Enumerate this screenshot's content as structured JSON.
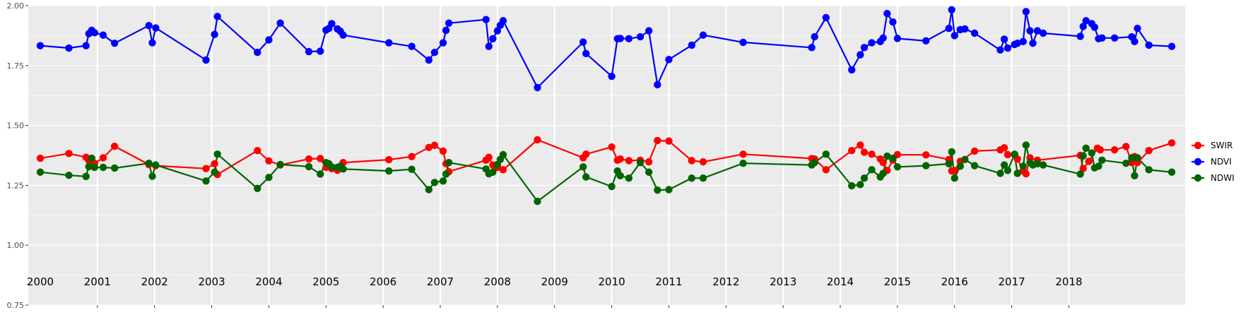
{
  "chart_data": {
    "type": "line",
    "title": "",
    "xlabel": "",
    "ylabel": "",
    "ylim": [
      0.75,
      2.0
    ],
    "xlim": [
      1999.55,
      2018.9
    ],
    "y_ticks": [
      0.75,
      1.0,
      1.25,
      1.5,
      1.75,
      2.0
    ],
    "y_tick_labels": [
      "0.75",
      "1.00",
      "1.25",
      "1.50",
      "1.75",
      "2.00"
    ],
    "year_labels": [
      "2000",
      "2001",
      "2002",
      "2003",
      "2004",
      "2005",
      "2006",
      "2007",
      "2008",
      "2009",
      "2010",
      "2011",
      "2012",
      "2013",
      "2014",
      "2015",
      "2016",
      "2017",
      "2018"
    ],
    "year_label_y": 0.85,
    "grid": true,
    "background": "#EBEBEB",
    "legend": {
      "position": "right",
      "entries": [
        "SWIR",
        "NDVI",
        "NDWI"
      ]
    },
    "series": [
      {
        "name": "NDVI",
        "color": "#0000FF",
        "points": [
          [
            2000.0,
            1.833
          ],
          [
            2000.5,
            1.823
          ],
          [
            2000.8,
            1.833
          ],
          [
            2000.85,
            1.883
          ],
          [
            2000.9,
            1.897
          ],
          [
            2000.95,
            1.887
          ],
          [
            2001.1,
            1.877
          ],
          [
            2001.3,
            1.843
          ],
          [
            2001.9,
            1.917
          ],
          [
            2001.96,
            1.845
          ],
          [
            2002.02,
            1.907
          ],
          [
            2002.9,
            1.773
          ],
          [
            2003.05,
            1.88
          ],
          [
            2003.1,
            1.955
          ],
          [
            2003.8,
            1.805
          ],
          [
            2004.0,
            1.857
          ],
          [
            2004.2,
            1.927
          ],
          [
            2004.7,
            1.808
          ],
          [
            2004.9,
            1.81
          ],
          [
            2005.0,
            1.898
          ],
          [
            2005.05,
            1.905
          ],
          [
            2005.1,
            1.925
          ],
          [
            2005.2,
            1.903
          ],
          [
            2005.25,
            1.893
          ],
          [
            2005.3,
            1.877
          ],
          [
            2006.1,
            1.845
          ],
          [
            2006.5,
            1.83
          ],
          [
            2006.8,
            1.773
          ],
          [
            2006.9,
            1.805
          ],
          [
            2007.05,
            1.845
          ],
          [
            2007.1,
            1.897
          ],
          [
            2007.15,
            1.927
          ],
          [
            2007.8,
            1.942
          ],
          [
            2007.85,
            1.83
          ],
          [
            2007.92,
            1.862
          ],
          [
            2008.0,
            1.895
          ],
          [
            2008.05,
            1.918
          ],
          [
            2008.1,
            1.937
          ],
          [
            2008.7,
            1.658
          ],
          [
            2009.5,
            1.848
          ],
          [
            2009.55,
            1.8
          ],
          [
            2010.0,
            1.705
          ],
          [
            2010.1,
            1.862
          ],
          [
            2010.15,
            1.863
          ],
          [
            2010.3,
            1.862
          ],
          [
            2010.5,
            1.87
          ],
          [
            2010.65,
            1.895
          ],
          [
            2010.8,
            1.67
          ],
          [
            2011.0,
            1.775
          ],
          [
            2011.4,
            1.835
          ],
          [
            2011.6,
            1.877
          ],
          [
            2012.3,
            1.847
          ],
          [
            2013.5,
            1.825
          ],
          [
            2013.55,
            1.87
          ],
          [
            2013.75,
            1.95
          ],
          [
            2014.2,
            1.732
          ],
          [
            2014.35,
            1.795
          ],
          [
            2014.42,
            1.825
          ],
          [
            2014.55,
            1.845
          ],
          [
            2014.7,
            1.85
          ],
          [
            2014.75,
            1.865
          ],
          [
            2014.82,
            1.967
          ],
          [
            2014.92,
            1.932
          ],
          [
            2015.0,
            1.863
          ],
          [
            2015.5,
            1.853
          ],
          [
            2015.9,
            1.905
          ],
          [
            2015.95,
            1.983
          ],
          [
            2016.0,
            1.875
          ],
          [
            2016.1,
            1.9
          ],
          [
            2016.18,
            1.903
          ],
          [
            2016.35,
            1.885
          ],
          [
            2016.8,
            1.815
          ],
          [
            2016.87,
            1.86
          ],
          [
            2016.93,
            1.823
          ],
          [
            2017.05,
            1.838
          ],
          [
            2017.1,
            1.843
          ],
          [
            2017.2,
            1.85
          ],
          [
            2017.25,
            1.975
          ],
          [
            2017.32,
            1.895
          ],
          [
            2017.37,
            1.843
          ],
          [
            2017.45,
            1.895
          ],
          [
            2017.55,
            1.885
          ],
          [
            2018.2,
            1.872
          ],
          [
            2018.25,
            1.913
          ],
          [
            2018.3,
            1.937
          ],
          [
            2018.4,
            1.925
          ],
          [
            2018.45,
            1.91
          ],
          [
            2018.52,
            1.862
          ],
          [
            2018.58,
            1.865
          ],
          [
            2018.8,
            1.865
          ],
          [
            2019.1,
            1.87
          ],
          [
            2019.15,
            1.85
          ],
          [
            2019.2,
            1.905
          ],
          [
            2019.4,
            1.835
          ],
          [
            2019.8,
            1.83
          ]
        ]
      },
      {
        "name": "SWIR",
        "color": "#FF0000",
        "points": [
          [
            2000.0,
            1.363
          ],
          [
            2000.5,
            1.383
          ],
          [
            2000.8,
            1.367
          ],
          [
            2000.85,
            1.353
          ],
          [
            2000.95,
            1.342
          ],
          [
            2001.1,
            1.365
          ],
          [
            2001.3,
            1.413
          ],
          [
            2001.9,
            1.337
          ],
          [
            2002.02,
            1.332
          ],
          [
            2002.9,
            1.32
          ],
          [
            2003.05,
            1.34
          ],
          [
            2003.1,
            1.295
          ],
          [
            2003.8,
            1.395
          ],
          [
            2004.0,
            1.352
          ],
          [
            2004.2,
            1.335
          ],
          [
            2004.7,
            1.36
          ],
          [
            2004.9,
            1.362
          ],
          [
            2005.0,
            1.325
          ],
          [
            2005.1,
            1.32
          ],
          [
            2005.2,
            1.313
          ],
          [
            2005.3,
            1.345
          ],
          [
            2006.1,
            1.357
          ],
          [
            2006.5,
            1.37
          ],
          [
            2006.8,
            1.408
          ],
          [
            2006.9,
            1.417
          ],
          [
            2007.05,
            1.393
          ],
          [
            2007.1,
            1.34
          ],
          [
            2007.15,
            1.307
          ],
          [
            2007.8,
            1.355
          ],
          [
            2007.85,
            1.367
          ],
          [
            2007.92,
            1.335
          ],
          [
            2008.0,
            1.325
          ],
          [
            2008.1,
            1.315
          ],
          [
            2008.7,
            1.44
          ],
          [
            2009.5,
            1.365
          ],
          [
            2009.55,
            1.38
          ],
          [
            2010.0,
            1.41
          ],
          [
            2010.1,
            1.355
          ],
          [
            2010.15,
            1.36
          ],
          [
            2010.3,
            1.353
          ],
          [
            2010.5,
            1.355
          ],
          [
            2010.65,
            1.348
          ],
          [
            2010.8,
            1.437
          ],
          [
            2011.0,
            1.435
          ],
          [
            2011.4,
            1.353
          ],
          [
            2011.6,
            1.348
          ],
          [
            2012.3,
            1.38
          ],
          [
            2013.5,
            1.362
          ],
          [
            2013.55,
            1.36
          ],
          [
            2013.75,
            1.315
          ],
          [
            2014.2,
            1.395
          ],
          [
            2014.35,
            1.418
          ],
          [
            2014.42,
            1.388
          ],
          [
            2014.55,
            1.38
          ],
          [
            2014.7,
            1.36
          ],
          [
            2014.75,
            1.345
          ],
          [
            2014.82,
            1.312
          ],
          [
            2014.92,
            1.355
          ],
          [
            2015.0,
            1.378
          ],
          [
            2015.5,
            1.377
          ],
          [
            2015.9,
            1.358
          ],
          [
            2015.95,
            1.31
          ],
          [
            2016.0,
            1.312
          ],
          [
            2016.1,
            1.35
          ],
          [
            2016.35,
            1.393
          ],
          [
            2016.8,
            1.398
          ],
          [
            2016.87,
            1.407
          ],
          [
            2016.93,
            1.378
          ],
          [
            2017.05,
            1.378
          ],
          [
            2017.1,
            1.36
          ],
          [
            2017.2,
            1.31
          ],
          [
            2017.25,
            1.298
          ],
          [
            2017.32,
            1.365
          ],
          [
            2017.45,
            1.355
          ],
          [
            2018.2,
            1.375
          ],
          [
            2018.25,
            1.32
          ],
          [
            2018.35,
            1.35
          ],
          [
            2018.5,
            1.405
          ],
          [
            2018.55,
            1.398
          ],
          [
            2018.8,
            1.398
          ],
          [
            2019.0,
            1.412
          ],
          [
            2019.1,
            1.345
          ],
          [
            2019.15,
            1.37
          ],
          [
            2019.2,
            1.345
          ],
          [
            2019.4,
            1.395
          ],
          [
            2019.8,
            1.427
          ]
        ]
      },
      {
        "name": "NDWI",
        "color": "#006400",
        "points": [
          [
            2000.0,
            1.305
          ],
          [
            2000.5,
            1.292
          ],
          [
            2000.8,
            1.287
          ],
          [
            2000.85,
            1.328
          ],
          [
            2000.9,
            1.363
          ],
          [
            2000.95,
            1.325
          ],
          [
            2001.1,
            1.325
          ],
          [
            2001.3,
            1.322
          ],
          [
            2001.9,
            1.342
          ],
          [
            2001.96,
            1.288
          ],
          [
            2002.02,
            1.335
          ],
          [
            2002.9,
            1.268
          ],
          [
            2003.05,
            1.305
          ],
          [
            2003.1,
            1.38
          ],
          [
            2003.8,
            1.237
          ],
          [
            2004.0,
            1.283
          ],
          [
            2004.2,
            1.337
          ],
          [
            2004.7,
            1.328
          ],
          [
            2004.9,
            1.297
          ],
          [
            2005.0,
            1.345
          ],
          [
            2005.05,
            1.34
          ],
          [
            2005.1,
            1.327
          ],
          [
            2005.2,
            1.325
          ],
          [
            2005.25,
            1.33
          ],
          [
            2005.3,
            1.318
          ],
          [
            2006.1,
            1.31
          ],
          [
            2006.5,
            1.317
          ],
          [
            2006.8,
            1.232
          ],
          [
            2006.9,
            1.262
          ],
          [
            2007.05,
            1.268
          ],
          [
            2007.1,
            1.297
          ],
          [
            2007.15,
            1.345
          ],
          [
            2007.8,
            1.318
          ],
          [
            2007.85,
            1.298
          ],
          [
            2007.92,
            1.305
          ],
          [
            2008.0,
            1.337
          ],
          [
            2008.05,
            1.358
          ],
          [
            2008.1,
            1.378
          ],
          [
            2008.7,
            1.183
          ],
          [
            2009.5,
            1.327
          ],
          [
            2009.55,
            1.285
          ],
          [
            2010.0,
            1.245
          ],
          [
            2010.1,
            1.31
          ],
          [
            2010.15,
            1.29
          ],
          [
            2010.3,
            1.28
          ],
          [
            2010.5,
            1.345
          ],
          [
            2010.65,
            1.305
          ],
          [
            2010.8,
            1.23
          ],
          [
            2011.0,
            1.232
          ],
          [
            2011.4,
            1.28
          ],
          [
            2011.6,
            1.28
          ],
          [
            2012.3,
            1.342
          ],
          [
            2013.5,
            1.335
          ],
          [
            2013.55,
            1.345
          ],
          [
            2013.75,
            1.38
          ],
          [
            2014.2,
            1.248
          ],
          [
            2014.35,
            1.253
          ],
          [
            2014.42,
            1.28
          ],
          [
            2014.55,
            1.315
          ],
          [
            2014.7,
            1.285
          ],
          [
            2014.75,
            1.3
          ],
          [
            2014.82,
            1.372
          ],
          [
            2014.92,
            1.363
          ],
          [
            2015.0,
            1.327
          ],
          [
            2015.5,
            1.332
          ],
          [
            2015.9,
            1.34
          ],
          [
            2015.95,
            1.39
          ],
          [
            2016.0,
            1.28
          ],
          [
            2016.1,
            1.33
          ],
          [
            2016.18,
            1.358
          ],
          [
            2016.35,
            1.332
          ],
          [
            2016.8,
            1.3
          ],
          [
            2016.87,
            1.335
          ],
          [
            2016.93,
            1.312
          ],
          [
            2017.05,
            1.38
          ],
          [
            2017.1,
            1.3
          ],
          [
            2017.2,
            1.33
          ],
          [
            2017.25,
            1.418
          ],
          [
            2017.32,
            1.345
          ],
          [
            2017.37,
            1.335
          ],
          [
            2017.45,
            1.34
          ],
          [
            2017.55,
            1.335
          ],
          [
            2018.2,
            1.297
          ],
          [
            2018.25,
            1.373
          ],
          [
            2018.3,
            1.405
          ],
          [
            2018.4,
            1.385
          ],
          [
            2018.45,
            1.323
          ],
          [
            2018.52,
            1.33
          ],
          [
            2018.58,
            1.355
          ],
          [
            2019.0,
            1.342
          ],
          [
            2019.1,
            1.365
          ],
          [
            2019.15,
            1.29
          ],
          [
            2019.2,
            1.365
          ],
          [
            2019.4,
            1.315
          ],
          [
            2019.8,
            1.305
          ]
        ]
      }
    ]
  }
}
